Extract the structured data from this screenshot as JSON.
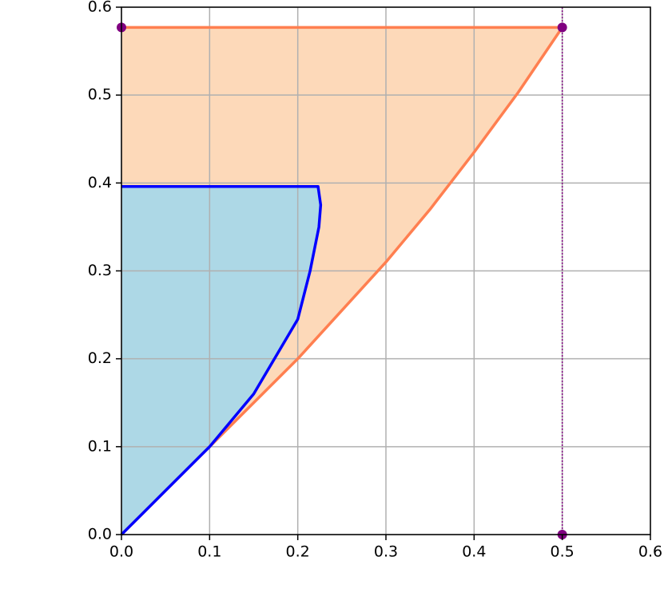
{
  "chart_data": {
    "type": "area",
    "xlim": [
      0,
      0.6
    ],
    "ylim": [
      0,
      0.6
    ],
    "xticks": [
      {
        "value": 0,
        "label": "0.0"
      },
      0.1,
      0.2,
      0.3,
      0.4,
      0.5,
      0.6
    ],
    "yticks": [
      {
        "value": 0,
        "label": "0.0"
      },
      0.1,
      0.2,
      0.3,
      0.4,
      0.5,
      0.6
    ],
    "grid": true,
    "series": [
      {
        "color": "#ff7f50",
        "fill": "#fdd9b9",
        "x": [
          0,
          0.05,
          0.1,
          0.15,
          0.2,
          0.25,
          0.3,
          0.35,
          0.4,
          0.45,
          0.5,
          0
        ],
        "values": [
          0,
          0.05,
          0.1,
          0.15,
          0.2,
          0.255,
          0.31,
          0.37,
          0.435,
          0.503,
          0.577,
          0.577
        ]
      },
      {
        "color": "#0000ff",
        "fill": "#add8e6",
        "x": [
          0,
          0.05,
          0.1,
          0.15,
          0.2,
          0.214,
          0.224,
          0.226,
          0.223,
          0
        ],
        "values": [
          0,
          0.05,
          0.1,
          0.16,
          0.245,
          0.3,
          0.35,
          0.375,
          0.396,
          0.396
        ]
      }
    ],
    "points": {
      "color": "#800080",
      "x": [
        0,
        0.5,
        0.5
      ],
      "values": [
        0.577,
        0.577,
        0
      ]
    },
    "vline": {
      "x": 0.5,
      "color": "#800080"
    }
  }
}
